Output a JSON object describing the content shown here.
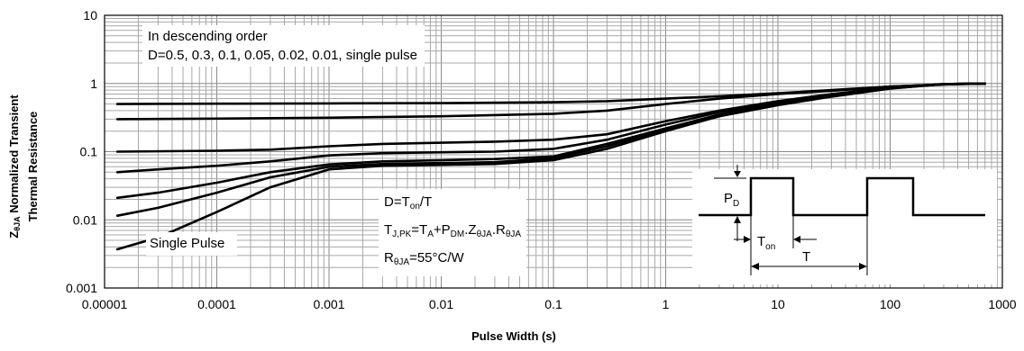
{
  "chart_data": {
    "type": "line",
    "x_scale": "log",
    "y_scale": "log",
    "xlim": [
      1e-05,
      1000
    ],
    "ylim": [
      0.001,
      10
    ],
    "grid": true,
    "x_ticks": [
      "0.00001",
      "0.0001",
      "0.001",
      "0.01",
      "0.1",
      "1",
      "10",
      "100",
      "1000"
    ],
    "y_ticks": [
      "0.001",
      "0.01",
      "0.1",
      "1",
      "10"
    ],
    "xlabel": "Pulse Width (s)",
    "ylabel_parts": [
      "Z",
      "θJA",
      " Normalized Transient"
    ],
    "ylabel_line2": "Thermal Resistance",
    "legend_lines": [
      "In descending order",
      "D=0.5, 0.3, 0.1, 0.05, 0.02, 0.01, single pulse"
    ],
    "series": [
      {
        "x": [
          1.3e-05,
          0.0001,
          0.001,
          0.01,
          0.1,
          0.3,
          1,
          3,
          10,
          30,
          100,
          300,
          700
        ],
        "y": [
          0.5,
          0.505,
          0.51,
          0.515,
          0.53,
          0.55,
          0.6,
          0.65,
          0.72,
          0.8,
          0.9,
          0.97,
          1.0
        ]
      },
      {
        "x": [
          1.3e-05,
          0.0001,
          0.001,
          0.01,
          0.1,
          0.3,
          1,
          3,
          10,
          30,
          100,
          300,
          700
        ],
        "y": [
          0.3,
          0.305,
          0.315,
          0.33,
          0.36,
          0.4,
          0.5,
          0.6,
          0.7,
          0.78,
          0.9,
          0.97,
          1.0
        ]
      },
      {
        "x": [
          1.3e-05,
          0.0001,
          0.0003,
          0.001,
          0.003,
          0.01,
          0.03,
          0.1,
          0.3,
          1,
          3,
          10,
          30,
          100,
          300,
          700
        ],
        "y": [
          0.1,
          0.103,
          0.107,
          0.12,
          0.13,
          0.135,
          0.14,
          0.15,
          0.18,
          0.28,
          0.4,
          0.55,
          0.7,
          0.87,
          0.98,
          1.0
        ]
      },
      {
        "x": [
          1.3e-05,
          3e-05,
          0.0001,
          0.0003,
          0.001,
          0.003,
          0.01,
          0.03,
          0.1,
          0.3,
          1,
          3,
          10,
          30,
          100,
          300,
          700
        ],
        "y": [
          0.05,
          0.055,
          0.062,
          0.072,
          0.088,
          0.095,
          0.098,
          0.1,
          0.11,
          0.15,
          0.25,
          0.38,
          0.52,
          0.68,
          0.86,
          0.98,
          1.0
        ]
      },
      {
        "x": [
          1.3e-05,
          3e-05,
          0.0001,
          0.0003,
          0.001,
          0.003,
          0.01,
          0.03,
          0.1,
          0.3,
          1,
          3,
          10,
          30,
          100,
          300,
          700
        ],
        "y": [
          0.021,
          0.025,
          0.035,
          0.05,
          0.065,
          0.072,
          0.075,
          0.078,
          0.085,
          0.13,
          0.22,
          0.35,
          0.5,
          0.66,
          0.85,
          0.98,
          1.0
        ]
      },
      {
        "x": [
          1.3e-05,
          3e-05,
          0.0001,
          0.0003,
          0.001,
          0.003,
          0.01,
          0.03,
          0.1,
          0.3,
          1,
          3,
          10,
          30,
          100,
          300,
          700
        ],
        "y": [
          0.0115,
          0.015,
          0.025,
          0.042,
          0.06,
          0.066,
          0.068,
          0.07,
          0.08,
          0.12,
          0.21,
          0.34,
          0.5,
          0.65,
          0.85,
          0.98,
          1.0
        ]
      },
      {
        "x": [
          1.3e-05,
          3e-05,
          0.0001,
          0.0003,
          0.001,
          0.003,
          0.01,
          0.03,
          0.1,
          0.3,
          1,
          3,
          10,
          30,
          100,
          300,
          700
        ],
        "y": [
          0.0037,
          0.0055,
          0.013,
          0.03,
          0.055,
          0.062,
          0.064,
          0.066,
          0.075,
          0.11,
          0.2,
          0.33,
          0.48,
          0.64,
          0.84,
          0.98,
          1.0
        ]
      }
    ],
    "single_pulse_label": "Single Pulse",
    "equations": {
      "d": {
        "main": "D=T",
        "sub": "on",
        "tail": "/T"
      },
      "tj": [
        "T",
        "J,PK",
        "=T",
        "A",
        "+P",
        "DM",
        ".Z",
        "θJA",
        ".R",
        "θJA"
      ],
      "r": {
        "main": "R",
        "sub": "θJA",
        "tail": "=55°C/W"
      }
    },
    "waveform": {
      "pd_main": "P",
      "pd_sub": "D",
      "ton_main": "T",
      "ton_sub": "on",
      "period": "T"
    }
  }
}
